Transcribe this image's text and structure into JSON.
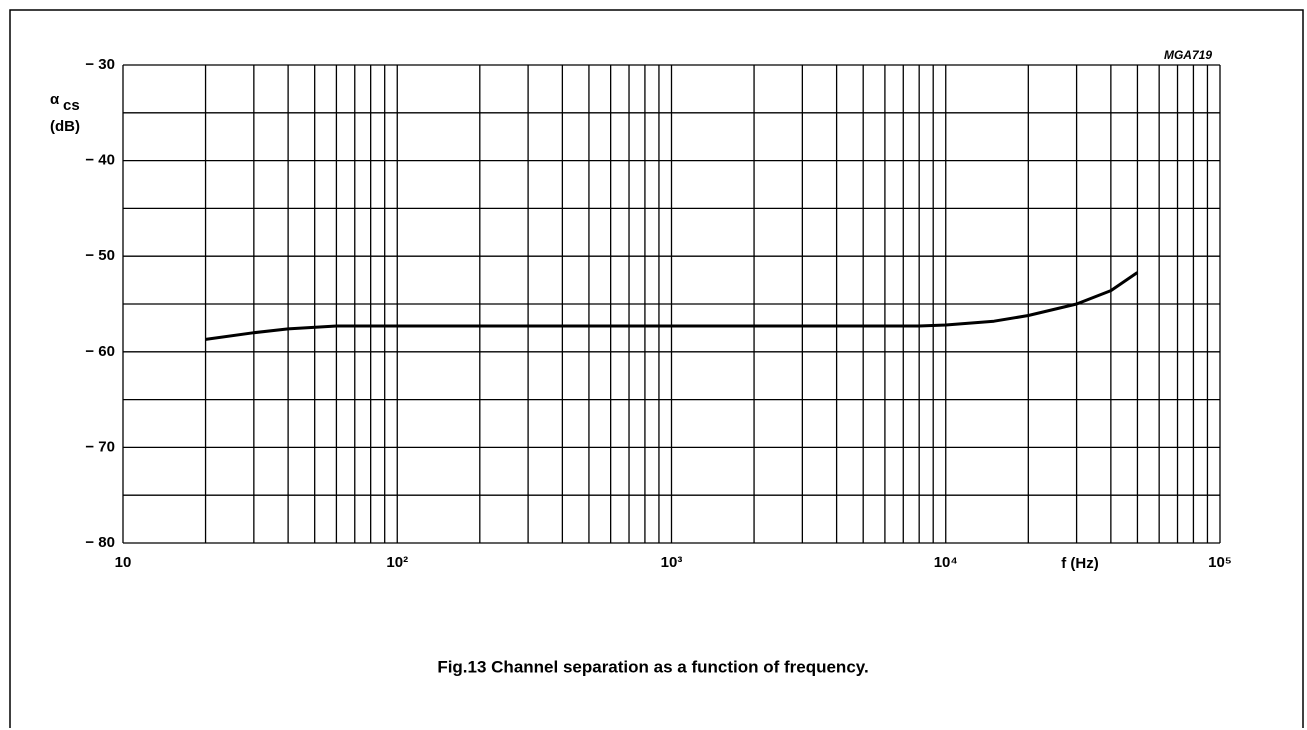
{
  "chart_data": {
    "type": "line",
    "annotation": "MGA719",
    "y_label_symbol": "α",
    "y_label_subscript": "cs",
    "y_label_unit": "(dB)",
    "x_label": "f (Hz)",
    "caption": "Fig.13  Channel separation as a function of frequency.",
    "log_x": true,
    "grid": true,
    "color": "#000000",
    "x": [
      20,
      30,
      40,
      60,
      100,
      300,
      1000,
      3000,
      8000,
      10000,
      15000,
      20000,
      30000,
      40000,
      50000
    ],
    "values": [
      -58.7,
      -58.0,
      -57.6,
      -57.3,
      -57.3,
      -57.3,
      -57.3,
      -57.3,
      -57.3,
      -57.2,
      -56.8,
      -56.2,
      -55.0,
      -53.6,
      -51.7
    ],
    "xlim": [
      10,
      100000
    ],
    "xticks": [
      {
        "value": 10,
        "label": "10"
      },
      {
        "value": 100,
        "label": "10²"
      },
      {
        "value": 1000,
        "label": "10³"
      },
      {
        "value": 10000,
        "label": "10⁴"
      },
      {
        "value": 100000,
        "label": "10⁵"
      }
    ],
    "xminorticks": [
      20,
      30,
      40,
      50,
      60,
      70,
      80,
      90,
      200,
      300,
      400,
      500,
      600,
      700,
      800,
      900,
      2000,
      3000,
      4000,
      5000,
      6000,
      7000,
      8000,
      9000,
      20000,
      30000,
      40000,
      50000,
      60000,
      70000,
      80000,
      90000
    ],
    "ylim": [
      -80,
      -30
    ],
    "yticks": [
      {
        "value": -30,
        "label": "− 30"
      },
      {
        "value": -40,
        "label": "− 40"
      },
      {
        "value": -50,
        "label": "− 50"
      },
      {
        "value": -60,
        "label": "− 60"
      },
      {
        "value": -70,
        "label": "− 70"
      },
      {
        "value": -80,
        "label": "− 80"
      }
    ],
    "yminorticks": [
      -35,
      -45,
      -55,
      -65,
      -75
    ]
  }
}
